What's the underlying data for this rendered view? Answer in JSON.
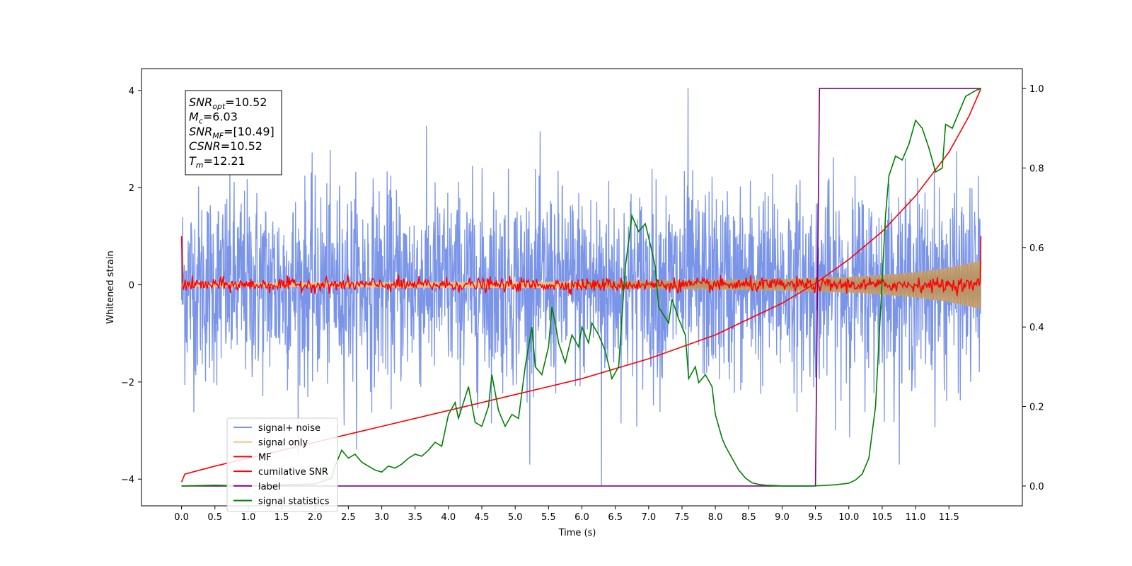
{
  "chart_data": {
    "type": "line",
    "title": "",
    "xlabel": "Time (s)",
    "ylabel": "Whitened strain",
    "y2label": "",
    "xlim": [
      -0.6,
      12.6
    ],
    "ylim": [
      -4.55,
      4.45
    ],
    "y2lim": [
      -0.05,
      1.05
    ],
    "x_ticks": [
      "0.0",
      "0.5",
      "1.0",
      "1.5",
      "2.0",
      "2.5",
      "3.0",
      "3.5",
      "4.0",
      "4.5",
      "5.0",
      "5.5",
      "6.0",
      "6.5",
      "7.0",
      "7.5",
      "8.0",
      "8.5",
      "9.0",
      "9.5",
      "10.0",
      "10.5",
      "11.0",
      "11.5"
    ],
    "y_ticks": [
      "4",
      "2",
      "0",
      "−2",
      "−4"
    ],
    "y2_ticks": [
      "1.0",
      "0.8",
      "0.6",
      "0.4",
      "0.2",
      "0.0"
    ],
    "grid": false,
    "legend_position": "lower-left",
    "annotation": {
      "lines": [
        {
          "base": "SNR",
          "sub": "opt",
          "rest": "=10.52"
        },
        {
          "base": "M",
          "sub": "c",
          "rest": "=6.03"
        },
        {
          "base": "SNR",
          "sub": "MF",
          "rest": "=[10.49]"
        },
        {
          "base": "CSNR",
          "sub": "",
          "rest": "=10.52"
        },
        {
          "base": "T",
          "sub": "m",
          "rest": "=12.21"
        }
      ]
    },
    "series": [
      {
        "name": "signal+ noise",
        "color": "#7a94e8",
        "axis": "left",
        "description_values": {
          "x_range": [
            0.0,
            11.98
          ],
          "approx_std": 1.0,
          "peak_max": 4.05,
          "peak_min": -4.15
        }
      },
      {
        "name": "signal only",
        "color": "#f5c77e",
        "axis": "left",
        "x": [
          0,
          2,
          4,
          6,
          7,
          8,
          9,
          10,
          10.5,
          11,
          11.5,
          11.98
        ],
        "envelope": [
          0.04,
          0.05,
          0.06,
          0.07,
          0.08,
          0.1,
          0.12,
          0.16,
          0.2,
          0.26,
          0.35,
          0.5
        ]
      },
      {
        "name": "MF",
        "color": "#ff0000",
        "axis": "left",
        "description_values": {
          "x_range": [
            0.0,
            11.98
          ],
          "approx_std": 0.07,
          "start": 1.0,
          "end": 1.0
        }
      },
      {
        "name": "cumilative SNR",
        "color": "#ff0000",
        "axis": "right",
        "x": [
          0.0,
          0.05,
          0.5,
          1.0,
          2.0,
          3.0,
          4.0,
          5.0,
          6.0,
          7.0,
          7.5,
          8.0,
          8.5,
          9.0,
          9.5,
          10.0,
          10.5,
          11.0,
          11.5,
          11.8,
          11.98
        ],
        "values": [
          0.01,
          0.03,
          0.05,
          0.07,
          0.11,
          0.15,
          0.19,
          0.23,
          0.27,
          0.32,
          0.35,
          0.38,
          0.42,
          0.46,
          0.51,
          0.57,
          0.64,
          0.73,
          0.84,
          0.93,
          1.0
        ]
      },
      {
        "name": "label",
        "color": "#800080",
        "axis": "right",
        "x": [
          0.0,
          9.5,
          9.56,
          11.98
        ],
        "values": [
          0.0,
          0.0,
          1.0,
          1.0
        ]
      },
      {
        "name": "signal statistics",
        "color": "#008000",
        "axis": "right",
        "x": [
          0.0,
          0.5,
          1.0,
          1.5,
          2.0,
          2.25,
          2.3,
          2.4,
          2.5,
          2.6,
          2.7,
          2.8,
          2.9,
          3.0,
          3.1,
          3.2,
          3.3,
          3.4,
          3.5,
          3.6,
          3.7,
          3.8,
          3.9,
          4.0,
          4.1,
          4.15,
          4.3,
          4.4,
          4.5,
          4.6,
          4.65,
          4.75,
          4.85,
          4.95,
          5.05,
          5.15,
          5.25,
          5.3,
          5.4,
          5.5,
          5.55,
          5.6,
          5.65,
          5.75,
          5.85,
          5.95,
          6.0,
          6.1,
          6.15,
          6.25,
          6.35,
          6.45,
          6.55,
          6.65,
          6.75,
          6.85,
          6.95,
          7.05,
          7.1,
          7.15,
          7.3,
          7.35,
          7.45,
          7.55,
          7.6,
          7.7,
          7.75,
          7.85,
          7.95,
          8.0,
          8.1,
          8.15,
          8.25,
          8.35,
          8.45,
          8.55,
          8.65,
          8.75,
          8.9,
          9.0,
          9.2,
          9.4,
          9.6,
          9.8,
          10.0,
          10.1,
          10.2,
          10.3,
          10.4,
          10.5,
          10.55,
          10.6,
          10.7,
          10.8,
          10.9,
          11.0,
          11.1,
          11.2,
          11.3,
          11.4,
          11.45,
          11.55,
          11.65,
          11.75,
          11.85,
          11.9,
          11.98
        ],
        "values": [
          0.0,
          0.002,
          0.0,
          0.003,
          0.005,
          0.02,
          0.05,
          0.09,
          0.07,
          0.08,
          0.06,
          0.05,
          0.04,
          0.035,
          0.05,
          0.045,
          0.055,
          0.07,
          0.08,
          0.075,
          0.09,
          0.11,
          0.1,
          0.18,
          0.21,
          0.17,
          0.25,
          0.16,
          0.15,
          0.2,
          0.28,
          0.19,
          0.15,
          0.18,
          0.17,
          0.3,
          0.4,
          0.3,
          0.28,
          0.35,
          0.45,
          0.41,
          0.36,
          0.31,
          0.38,
          0.35,
          0.4,
          0.36,
          0.41,
          0.38,
          0.34,
          0.27,
          0.3,
          0.55,
          0.68,
          0.64,
          0.66,
          0.59,
          0.55,
          0.45,
          0.41,
          0.47,
          0.42,
          0.38,
          0.27,
          0.3,
          0.26,
          0.28,
          0.25,
          0.18,
          0.12,
          0.1,
          0.07,
          0.04,
          0.02,
          0.008,
          0.004,
          0.002,
          0.001,
          0.0,
          0.0,
          0.0,
          0.001,
          0.003,
          0.007,
          0.015,
          0.03,
          0.07,
          0.2,
          0.52,
          0.68,
          0.78,
          0.83,
          0.82,
          0.86,
          0.92,
          0.9,
          0.85,
          0.79,
          0.8,
          0.91,
          0.9,
          0.94,
          0.98,
          0.99,
          0.995,
          1.0
        ]
      }
    ]
  }
}
